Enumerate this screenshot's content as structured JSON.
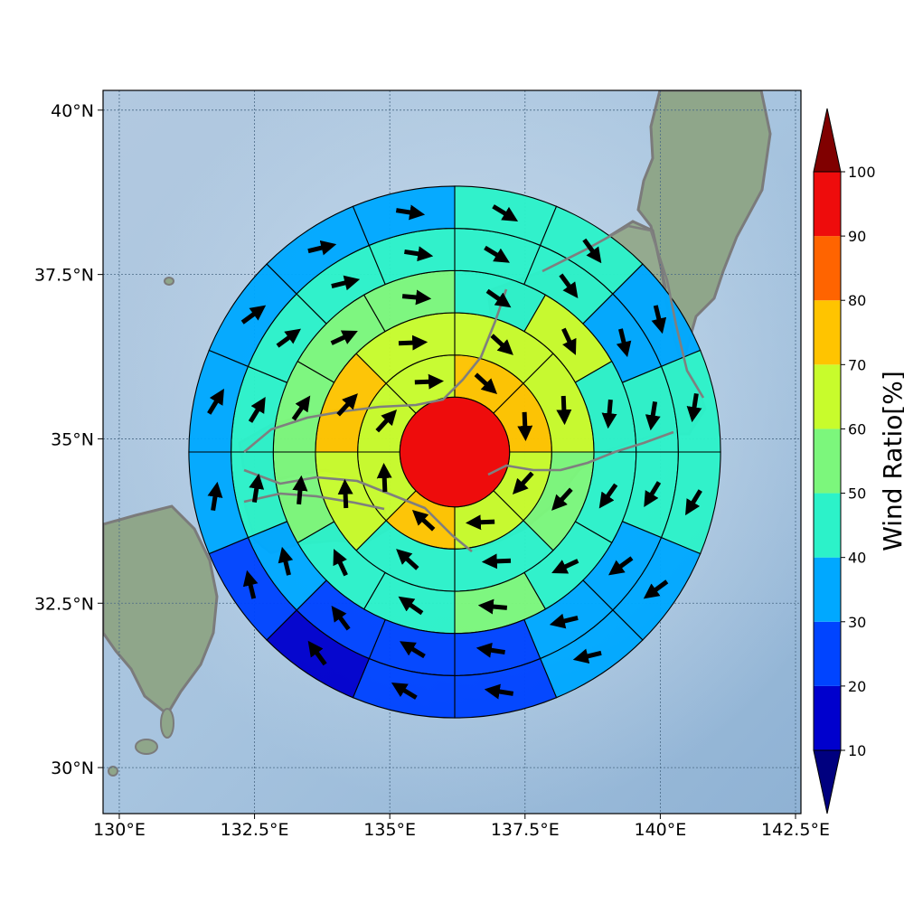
{
  "chart_data": {
    "type": "heatmap",
    "title": "",
    "center": {
      "lon": 136.2,
      "lat": 34.8
    },
    "ring_radii_deg": [
      1.3,
      2.3,
      3.3,
      4.3,
      5.3,
      6.3
    ],
    "rings": [
      {
        "sectors": 8,
        "values": [
          72,
          72,
          65,
          64,
          72,
          60,
          64,
          65
        ]
      },
      {
        "sectors": 8,
        "values": [
          63,
          65,
          56,
          44,
          42,
          62,
          72,
          62
        ]
      },
      {
        "sectors": 12,
        "values": [
          47,
          60,
          43,
          40,
          42,
          52,
          42,
          48,
          50,
          56,
          56,
          50
        ]
      },
      {
        "sectors": 16,
        "values": [
          43,
          42,
          37,
          42,
          45,
          37,
          32,
          28,
          24,
          26,
          33,
          42,
          46,
          45,
          44,
          43
        ]
      },
      {
        "sectors": 16,
        "values": [
          43,
          42,
          34,
          42,
          44,
          34,
          32,
          25,
          22,
          16,
          24,
          32,
          33,
          38,
          37,
          37
        ]
      },
      {
        "sectors": 20,
        "values": [
          35,
          37,
          33,
          37,
          37,
          38,
          24,
          28,
          26,
          30,
          17,
          28,
          28,
          26,
          34,
          38,
          36,
          37,
          24,
          34
        ]
      }
    ],
    "center_value": 98,
    "colorbar": {
      "label": "Wind Ratio[%]",
      "ticks": [
        "10",
        "20",
        "30",
        "40",
        "50",
        "60",
        "70",
        "80",
        "90",
        "100"
      ],
      "levels": [
        10,
        20,
        30,
        40,
        50,
        60,
        70,
        80,
        90,
        100
      ],
      "colors": [
        "#0000cd",
        "#0044ff",
        "#00a8ff",
        "#2cf2c9",
        "#7cf77c",
        "#c8fc2c",
        "#ffc400",
        "#ff6400",
        "#ee0c0c"
      ],
      "under_color": "#00007f",
      "over_color": "#800000"
    },
    "x_ticks": [
      {
        "value": 130,
        "label": "130°E"
      },
      {
        "value": 132.5,
        "label": "132.5°E"
      },
      {
        "value": 135,
        "label": "135°E"
      },
      {
        "value": 137.5,
        "label": "137.5°E"
      },
      {
        "value": 140,
        "label": "140°E"
      },
      {
        "value": 142.5,
        "label": "142.5°E"
      }
    ],
    "y_ticks": [
      {
        "value": 40,
        "label": "40°N"
      },
      {
        "value": 37.5,
        "label": "37.5°N"
      },
      {
        "value": 35,
        "label": "35°N"
      },
      {
        "value": 32.5,
        "label": "32.5°N"
      },
      {
        "value": 30,
        "label": "30°N"
      }
    ],
    "lon_range": [
      129.7,
      142.6
    ],
    "lat_range": [
      29.3,
      40.3
    ],
    "grid": true
  }
}
